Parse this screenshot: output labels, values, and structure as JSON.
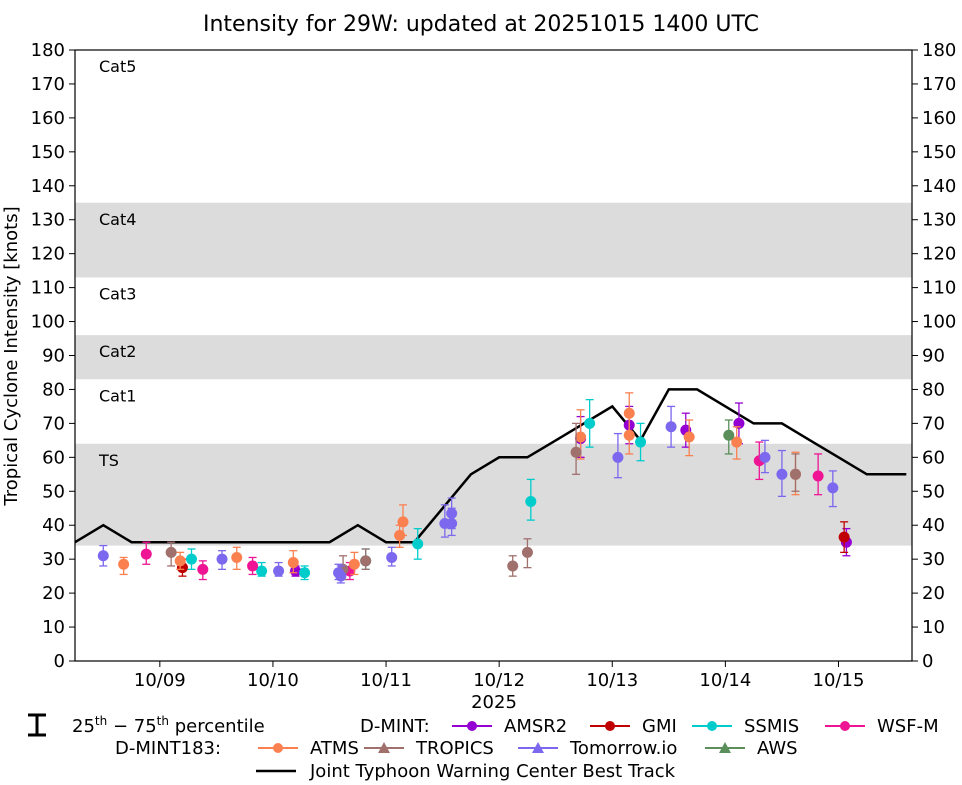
{
  "chart_data": {
    "type": "scatter",
    "title": "Intensity for 29W: updated at 20251015 1400 UTC",
    "ylabel": "Tropical Cyclone Intensity [knots]",
    "xlabel": "2025",
    "ylim": [
      0,
      180
    ],
    "yticks": [
      0,
      10,
      20,
      30,
      40,
      50,
      60,
      70,
      80,
      90,
      100,
      110,
      120,
      130,
      140,
      150,
      160,
      170,
      180
    ],
    "xlim_days": [
      8.25,
      15.65
    ],
    "xticks": [
      {
        "day": 9,
        "label": "10/09"
      },
      {
        "day": 10,
        "label": "10/10"
      },
      {
        "day": 11,
        "label": "10/11"
      },
      {
        "day": 12,
        "label": "10/12"
      },
      {
        "day": 13,
        "label": "10/13"
      },
      {
        "day": 14,
        "label": "10/14"
      },
      {
        "day": 15,
        "label": "10/15"
      }
    ],
    "category_bands": [
      {
        "label": "TS",
        "lo": 34,
        "hi": 64,
        "shaded": true
      },
      {
        "label": "Cat1",
        "lo": 64,
        "hi": 83,
        "shaded": false
      },
      {
        "label": "Cat2",
        "lo": 83,
        "hi": 96,
        "shaded": true
      },
      {
        "label": "Cat3",
        "lo": 96,
        "hi": 113,
        "shaded": false
      },
      {
        "label": "Cat4",
        "lo": 113,
        "hi": 135,
        "shaded": true
      },
      {
        "label": "Cat5",
        "lo": 135,
        "hi": 180,
        "shaded": false
      }
    ],
    "best_track": {
      "name": "Joint Typhoon Warning Center Best Track",
      "color": "#000000",
      "x": [
        8.25,
        8.5,
        8.75,
        9.0,
        9.25,
        9.5,
        9.75,
        10.0,
        10.25,
        10.5,
        10.75,
        11.0,
        11.25,
        11.5,
        11.75,
        12.0,
        12.25,
        12.5,
        12.75,
        13.0,
        13.25,
        13.5,
        13.75,
        14.0,
        14.25,
        14.5,
        14.75,
        15.0,
        15.25,
        15.6
      ],
      "y": [
        35,
        40,
        35,
        35,
        35,
        35,
        35,
        35,
        35,
        35,
        40,
        35,
        35,
        45,
        55,
        60,
        60,
        65,
        70,
        75,
        65,
        80,
        80,
        75,
        70,
        70,
        65,
        60,
        55,
        55
      ]
    },
    "series": [
      {
        "name": "AMSR2",
        "group": "D-MINT",
        "color": "#9400d3",
        "marker": "circle",
        "points": [
          {
            "x": 10.2,
            "y": 26.5,
            "lo": 25,
            "hi": 28
          },
          {
            "x": 12.72,
            "y": 65.5,
            "lo": 60,
            "hi": 72
          },
          {
            "x": 13.15,
            "y": 69.5,
            "lo": 64,
            "hi": 75
          },
          {
            "x": 13.65,
            "y": 68,
            "lo": 63,
            "hi": 73
          },
          {
            "x": 14.12,
            "y": 70,
            "lo": 64,
            "hi": 76
          },
          {
            "x": 15.07,
            "y": 35,
            "lo": 31,
            "hi": 39
          }
        ]
      },
      {
        "name": "GMI",
        "group": "D-MINT",
        "color": "#c00000",
        "marker": "circle",
        "points": [
          {
            "x": 9.2,
            "y": 27.5,
            "lo": 25,
            "hi": 30
          },
          {
            "x": 15.05,
            "y": 36.5,
            "lo": 32,
            "hi": 41
          }
        ]
      },
      {
        "name": "SSMIS",
        "group": "D-MINT",
        "color": "#00cccc",
        "marker": "circle",
        "points": [
          {
            "x": 9.28,
            "y": 30,
            "lo": 27,
            "hi": 33
          },
          {
            "x": 9.9,
            "y": 26.5,
            "lo": 25,
            "hi": 29
          },
          {
            "x": 10.28,
            "y": 26,
            "lo": 24,
            "hi": 28
          },
          {
            "x": 10.82,
            "y": 29.5,
            "lo": 27,
            "hi": 33
          },
          {
            "x": 11.28,
            "y": 34.5,
            "lo": 30,
            "hi": 39
          },
          {
            "x": 12.28,
            "y": 47,
            "lo": 41.5,
            "hi": 53.5
          },
          {
            "x": 12.8,
            "y": 70,
            "lo": 63,
            "hi": 77
          },
          {
            "x": 13.25,
            "y": 64.5,
            "lo": 59,
            "hi": 70
          }
        ]
      },
      {
        "name": "WSF-M",
        "group": "D-MINT",
        "color": "#ee1493",
        "marker": "circle",
        "points": [
          {
            "x": 8.88,
            "y": 31.5,
            "lo": 28.5,
            "hi": 35
          },
          {
            "x": 9.38,
            "y": 27,
            "lo": 24,
            "hi": 29.5
          },
          {
            "x": 9.82,
            "y": 28,
            "lo": 25.5,
            "hi": 30.5
          },
          {
            "x": 10.68,
            "y": 26.5,
            "lo": 24,
            "hi": 29
          },
          {
            "x": 14.3,
            "y": 59,
            "lo": 53.5,
            "hi": 64.5
          },
          {
            "x": 14.82,
            "y": 54.5,
            "lo": 49,
            "hi": 61
          }
        ]
      },
      {
        "name": "ATMS",
        "group": "D-MINT183",
        "color": "#fa8050",
        "marker": "circle",
        "points": [
          {
            "x": 8.68,
            "y": 28.5,
            "lo": 25.5,
            "hi": 30.5
          },
          {
            "x": 9.18,
            "y": 29.5,
            "lo": 27,
            "hi": 32
          },
          {
            "x": 9.68,
            "y": 30.5,
            "lo": 27,
            "hi": 33.5
          },
          {
            "x": 10.18,
            "y": 29,
            "lo": 26,
            "hi": 32.5
          },
          {
            "x": 10.72,
            "y": 28.5,
            "lo": 25.5,
            "hi": 32
          },
          {
            "x": 11.12,
            "y": 37,
            "lo": 33.5,
            "hi": 40
          },
          {
            "x": 11.15,
            "y": 41,
            "lo": 37,
            "hi": 46
          },
          {
            "x": 12.72,
            "y": 66,
            "lo": 59.5,
            "hi": 74
          },
          {
            "x": 13.15,
            "y": 66.5,
            "lo": 61,
            "hi": 73
          },
          {
            "x": 13.15,
            "y": 73,
            "lo": 67.5,
            "hi": 79
          },
          {
            "x": 13.68,
            "y": 66,
            "lo": 60.5,
            "hi": 71
          },
          {
            "x": 14.1,
            "y": 64.5,
            "lo": 59.5,
            "hi": 69
          },
          {
            "x": 14.62,
            "y": 55,
            "lo": 49,
            "hi": 61.5
          }
        ]
      },
      {
        "name": "TROPICS",
        "group": "D-MINT183",
        "color": "#a0706c",
        "marker": "triangle",
        "points": [
          {
            "x": 9.1,
            "y": 32,
            "lo": 28,
            "hi": 35
          },
          {
            "x": 10.62,
            "y": 27,
            "lo": 24,
            "hi": 31
          },
          {
            "x": 10.82,
            "y": 29.5,
            "lo": 27,
            "hi": 33
          },
          {
            "x": 12.12,
            "y": 28,
            "lo": 25,
            "hi": 31
          },
          {
            "x": 12.25,
            "y": 32,
            "lo": 27.5,
            "hi": 36
          },
          {
            "x": 12.68,
            "y": 61.5,
            "lo": 55,
            "hi": 70
          },
          {
            "x": 14.62,
            "y": 55,
            "lo": 50,
            "hi": 61
          }
        ]
      },
      {
        "name": "Tomorrow.io",
        "group": "D-MINT183",
        "color": "#7b68ee",
        "marker": "triangle",
        "points": [
          {
            "x": 8.5,
            "y": 31,
            "lo": 28,
            "hi": 34
          },
          {
            "x": 9.55,
            "y": 30,
            "lo": 27,
            "hi": 32.5
          },
          {
            "x": 10.05,
            "y": 26.5,
            "lo": 25,
            "hi": 29
          },
          {
            "x": 10.58,
            "y": 26,
            "lo": 24,
            "hi": 28.5
          },
          {
            "x": 10.6,
            "y": 25,
            "lo": 23,
            "hi": 28
          },
          {
            "x": 11.05,
            "y": 30.5,
            "lo": 28,
            "hi": 33.5
          },
          {
            "x": 11.52,
            "y": 40.5,
            "lo": 36.5,
            "hi": 46
          },
          {
            "x": 11.58,
            "y": 40.5,
            "lo": 37,
            "hi": 45
          },
          {
            "x": 11.58,
            "y": 43.5,
            "lo": 39,
            "hi": 48
          },
          {
            "x": 13.05,
            "y": 60,
            "lo": 54,
            "hi": 67
          },
          {
            "x": 13.52,
            "y": 69,
            "lo": 63,
            "hi": 75
          },
          {
            "x": 14.35,
            "y": 60,
            "lo": 55.5,
            "hi": 65
          },
          {
            "x": 14.5,
            "y": 55,
            "lo": 48.5,
            "hi": 62
          },
          {
            "x": 14.95,
            "y": 51,
            "lo": 45.5,
            "hi": 56
          }
        ]
      },
      {
        "name": "AWS",
        "group": "D-MINT183",
        "color": "#5a8e5a",
        "marker": "triangle",
        "points": [
          {
            "x": 14.03,
            "y": 66.5,
            "lo": 61,
            "hi": 71
          }
        ]
      }
    ]
  },
  "legend": {
    "percentile_label": "25th − 75th percentile",
    "group1": "D-MINT:",
    "group2": "D-MINT183:"
  }
}
